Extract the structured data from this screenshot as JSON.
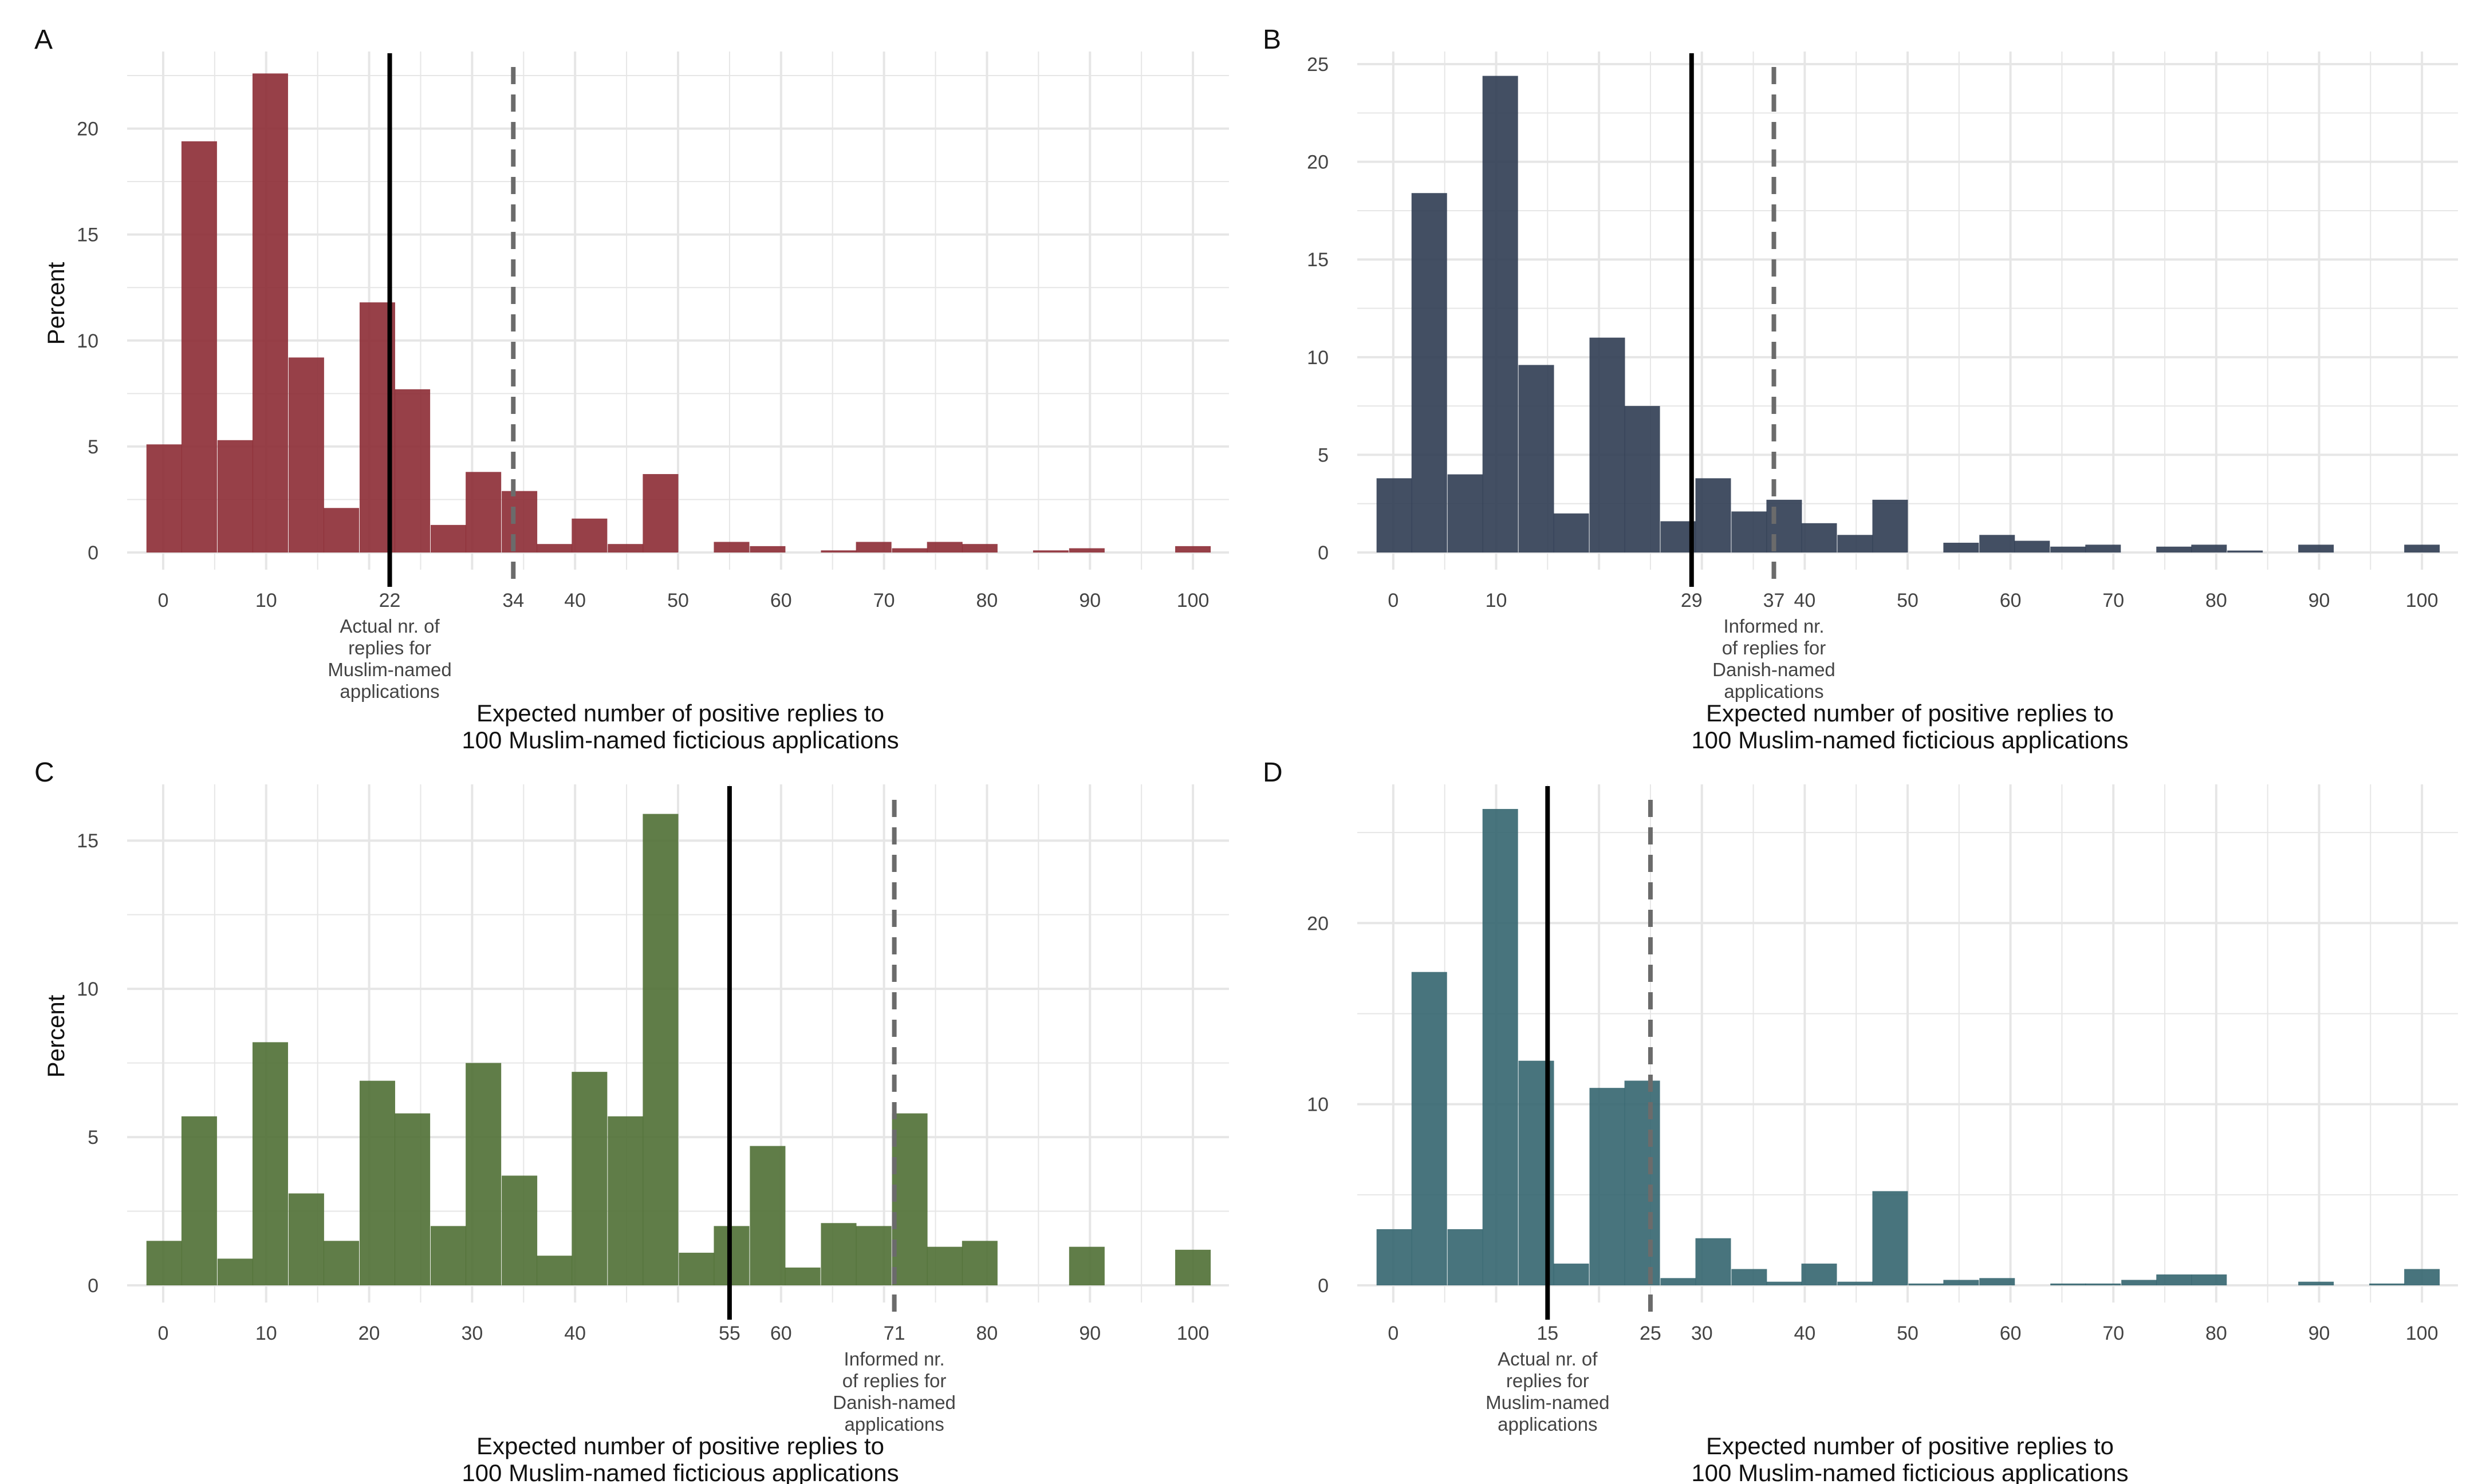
{
  "figure": {
    "colors": {
      "A": "#8c2b34",
      "B": "#2f3c52",
      "C": "#4f6f34",
      "D": "#34656f",
      "actual_line": "#000000",
      "dashed_line": "#6b6b6b",
      "grid": "#e6e6e6"
    }
  },
  "chart_data": [
    {
      "panel": "A",
      "type": "bar",
      "color": "#8c2b34",
      "ylabel": "Percent",
      "xlabel": "Expected number of positive replies to\n100 Muslim-named ficticious applications",
      "xlim": [
        -3.5,
        103.5
      ],
      "ylim": [
        0,
        23.5
      ],
      "yticks": [
        0,
        5,
        10,
        15,
        20
      ],
      "ygrid_minor": [
        2.5,
        7.5,
        12.5,
        17.5,
        22.5
      ],
      "xticks": [
        0,
        10,
        22,
        34,
        40,
        50,
        60,
        70,
        80,
        90,
        100
      ],
      "xgrid_major": [
        0,
        10,
        20,
        30,
        40,
        50,
        60,
        70,
        80,
        90,
        100
      ],
      "xgrid_minor": [
        5,
        15,
        25,
        35,
        45,
        55,
        65,
        75,
        85,
        95
      ],
      "bin_width": 3.45,
      "bins": [
        {
          "x": 0.1,
          "y": 5.1
        },
        {
          "x": 3.5,
          "y": 19.4
        },
        {
          "x": 7.0,
          "y": 5.3
        },
        {
          "x": 10.4,
          "y": 22.6
        },
        {
          "x": 13.9,
          "y": 9.2
        },
        {
          "x": 17.3,
          "y": 2.1
        },
        {
          "x": 20.8,
          "y": 11.8
        },
        {
          "x": 24.2,
          "y": 7.7
        },
        {
          "x": 27.7,
          "y": 1.3
        },
        {
          "x": 31.1,
          "y": 3.8
        },
        {
          "x": 34.6,
          "y": 2.9
        },
        {
          "x": 38.0,
          "y": 0.4
        },
        {
          "x": 41.4,
          "y": 1.6
        },
        {
          "x": 44.9,
          "y": 0.4
        },
        {
          "x": 48.3,
          "y": 3.7
        },
        {
          "x": 51.8,
          "y": 0.0
        },
        {
          "x": 55.2,
          "y": 0.5
        },
        {
          "x": 58.7,
          "y": 0.3
        },
        {
          "x": 62.1,
          "y": 0.0
        },
        {
          "x": 65.6,
          "y": 0.1
        },
        {
          "x": 69.0,
          "y": 0.5
        },
        {
          "x": 72.5,
          "y": 0.2
        },
        {
          "x": 75.9,
          "y": 0.5
        },
        {
          "x": 79.3,
          "y": 0.4
        },
        {
          "x": 82.8,
          "y": 0.0
        },
        {
          "x": 86.2,
          "y": 0.1
        },
        {
          "x": 89.7,
          "y": 0.2
        },
        {
          "x": 93.1,
          "y": 0.0
        },
        {
          "x": 96.6,
          "y": 0.0
        },
        {
          "x": 100.0,
          "y": 0.3
        }
      ],
      "solid_line": 22,
      "dashed_line": 34,
      "annotation": {
        "x": 22,
        "text": "Actual nr. of\nreplies for\nMuslim-named\napplications"
      }
    },
    {
      "panel": "B",
      "type": "bar",
      "color": "#2f3c52",
      "ylabel": "",
      "xlabel": "Expected number of positive replies to\n100 Muslim-named ficticious applications",
      "xlim": [
        -3.5,
        103.5
      ],
      "ylim": [
        0,
        25.5
      ],
      "yticks": [
        0,
        5,
        10,
        15,
        20,
        25
      ],
      "ygrid_minor": [
        2.5,
        7.5,
        12.5,
        17.5,
        22.5
      ],
      "xticks": [
        0,
        10,
        29,
        37,
        40,
        50,
        60,
        70,
        80,
        90,
        100
      ],
      "xgrid_major": [
        0,
        10,
        20,
        30,
        40,
        50,
        60,
        70,
        80,
        90,
        100
      ],
      "xgrid_minor": [
        5,
        15,
        25,
        35,
        45,
        55,
        65,
        75,
        85,
        95
      ],
      "bin_width": 3.45,
      "bins": [
        {
          "x": 0.1,
          "y": 3.8
        },
        {
          "x": 3.5,
          "y": 18.4
        },
        {
          "x": 7.0,
          "y": 4.0
        },
        {
          "x": 10.4,
          "y": 24.4
        },
        {
          "x": 13.9,
          "y": 9.6
        },
        {
          "x": 17.3,
          "y": 2.0
        },
        {
          "x": 20.8,
          "y": 11.0
        },
        {
          "x": 24.2,
          "y": 7.5
        },
        {
          "x": 27.7,
          "y": 1.6
        },
        {
          "x": 31.1,
          "y": 3.8
        },
        {
          "x": 34.6,
          "y": 2.1
        },
        {
          "x": 38.0,
          "y": 2.7
        },
        {
          "x": 41.4,
          "y": 1.5
        },
        {
          "x": 44.9,
          "y": 0.9
        },
        {
          "x": 48.3,
          "y": 2.7
        },
        {
          "x": 51.8,
          "y": 0.0
        },
        {
          "x": 55.2,
          "y": 0.5
        },
        {
          "x": 58.7,
          "y": 0.9
        },
        {
          "x": 62.1,
          "y": 0.6
        },
        {
          "x": 65.6,
          "y": 0.3
        },
        {
          "x": 69.0,
          "y": 0.4
        },
        {
          "x": 72.5,
          "y": 0.0
        },
        {
          "x": 75.9,
          "y": 0.3
        },
        {
          "x": 79.3,
          "y": 0.4
        },
        {
          "x": 82.8,
          "y": 0.1
        },
        {
          "x": 86.2,
          "y": 0.0
        },
        {
          "x": 89.7,
          "y": 0.4
        },
        {
          "x": 93.1,
          "y": 0.0
        },
        {
          "x": 96.6,
          "y": 0.0
        },
        {
          "x": 100.0,
          "y": 0.4
        }
      ],
      "solid_line": 29,
      "dashed_line": 37,
      "annotation": {
        "x": 37,
        "text": "Informed nr.\nof replies for\nDanish-named\napplications"
      }
    },
    {
      "panel": "C",
      "type": "bar",
      "color": "#4f6f34",
      "ylabel": "Percent",
      "xlabel": "Expected number of positive replies to\n100 Muslim-named ficticious applications",
      "xlim": [
        -3.5,
        103.5
      ],
      "ylim": [
        0,
        16.8
      ],
      "yticks": [
        0,
        5,
        10,
        15
      ],
      "ygrid_minor": [
        2.5,
        7.5,
        12.5
      ],
      "xticks": [
        0,
        10,
        20,
        30,
        40,
        55,
        60,
        71,
        80,
        90,
        100
      ],
      "xgrid_major": [
        0,
        10,
        20,
        30,
        40,
        50,
        60,
        70,
        80,
        90,
        100
      ],
      "xgrid_minor": [
        5,
        15,
        25,
        35,
        45,
        55,
        65,
        75,
        85,
        95
      ],
      "bin_width": 3.45,
      "bins": [
        {
          "x": 0.1,
          "y": 1.5
        },
        {
          "x": 3.5,
          "y": 5.7
        },
        {
          "x": 7.0,
          "y": 0.9
        },
        {
          "x": 10.4,
          "y": 8.2
        },
        {
          "x": 13.9,
          "y": 3.1
        },
        {
          "x": 17.3,
          "y": 1.5
        },
        {
          "x": 20.8,
          "y": 6.9
        },
        {
          "x": 24.2,
          "y": 5.8
        },
        {
          "x": 27.7,
          "y": 2.0
        },
        {
          "x": 31.1,
          "y": 7.5
        },
        {
          "x": 34.6,
          "y": 3.7
        },
        {
          "x": 38.0,
          "y": 1.0
        },
        {
          "x": 41.4,
          "y": 7.2
        },
        {
          "x": 44.9,
          "y": 5.7
        },
        {
          "x": 48.3,
          "y": 15.9
        },
        {
          "x": 51.8,
          "y": 1.1
        },
        {
          "x": 55.2,
          "y": 2.0
        },
        {
          "x": 58.7,
          "y": 4.7
        },
        {
          "x": 62.1,
          "y": 0.6
        },
        {
          "x": 65.6,
          "y": 2.1
        },
        {
          "x": 69.0,
          "y": 2.0
        },
        {
          "x": 72.5,
          "y": 5.8
        },
        {
          "x": 75.9,
          "y": 1.3
        },
        {
          "x": 79.3,
          "y": 1.5
        },
        {
          "x": 82.8,
          "y": 0.0
        },
        {
          "x": 86.2,
          "y": 0.0
        },
        {
          "x": 89.7,
          "y": 1.3
        },
        {
          "x": 93.1,
          "y": 0.0
        },
        {
          "x": 96.6,
          "y": 0.0
        },
        {
          "x": 100.0,
          "y": 1.2
        }
      ],
      "solid_line": 55,
      "dashed_line": 71,
      "annotation": {
        "x": 71,
        "text": "Informed nr.\nof replies for\nDanish-named\napplications"
      }
    },
    {
      "panel": "D",
      "type": "bar",
      "color": "#34656f",
      "ylabel": "",
      "xlabel": "Expected number of positive replies to\n100 Muslim-named ficticious applications",
      "xlim": [
        -3.5,
        103.5
      ],
      "ylim": [
        0,
        27.5
      ],
      "yticks": [
        0,
        10,
        20
      ],
      "ygrid_minor": [
        5,
        15,
        25
      ],
      "xticks": [
        0,
        15,
        25,
        30,
        40,
        50,
        60,
        70,
        80,
        90,
        100
      ],
      "xgrid_major": [
        0,
        10,
        20,
        30,
        40,
        50,
        60,
        70,
        80,
        90,
        100
      ],
      "xgrid_minor": [
        5,
        15,
        25,
        35,
        45,
        55,
        65,
        75,
        85,
        95
      ],
      "bin_width": 3.45,
      "bins": [
        {
          "x": 0.1,
          "y": 3.1
        },
        {
          "x": 3.5,
          "y": 17.3
        },
        {
          "x": 7.0,
          "y": 3.1
        },
        {
          "x": 10.4,
          "y": 26.3
        },
        {
          "x": 13.9,
          "y": 12.4
        },
        {
          "x": 17.3,
          "y": 1.2
        },
        {
          "x": 20.8,
          "y": 10.9
        },
        {
          "x": 24.2,
          "y": 11.3
        },
        {
          "x": 27.7,
          "y": 0.4
        },
        {
          "x": 31.1,
          "y": 2.6
        },
        {
          "x": 34.6,
          "y": 0.9
        },
        {
          "x": 38.0,
          "y": 0.2
        },
        {
          "x": 41.4,
          "y": 1.2
        },
        {
          "x": 44.9,
          "y": 0.2
        },
        {
          "x": 48.3,
          "y": 5.2
        },
        {
          "x": 51.8,
          "y": 0.1
        },
        {
          "x": 55.2,
          "y": 0.3
        },
        {
          "x": 58.7,
          "y": 0.4
        },
        {
          "x": 62.1,
          "y": 0.0
        },
        {
          "x": 65.6,
          "y": 0.1
        },
        {
          "x": 69.0,
          "y": 0.1
        },
        {
          "x": 72.5,
          "y": 0.3
        },
        {
          "x": 75.9,
          "y": 0.6
        },
        {
          "x": 79.3,
          "y": 0.6
        },
        {
          "x": 82.8,
          "y": 0.0
        },
        {
          "x": 86.2,
          "y": 0.0
        },
        {
          "x": 89.7,
          "y": 0.2
        },
        {
          "x": 93.1,
          "y": 0.0
        },
        {
          "x": 96.6,
          "y": 0.1
        },
        {
          "x": 100.0,
          "y": 0.9
        }
      ],
      "solid_line": 15,
      "dashed_line": 25,
      "annotation": {
        "x": 15,
        "text": "Actual nr. of\nreplies for\nMuslim-named\napplications"
      }
    }
  ]
}
